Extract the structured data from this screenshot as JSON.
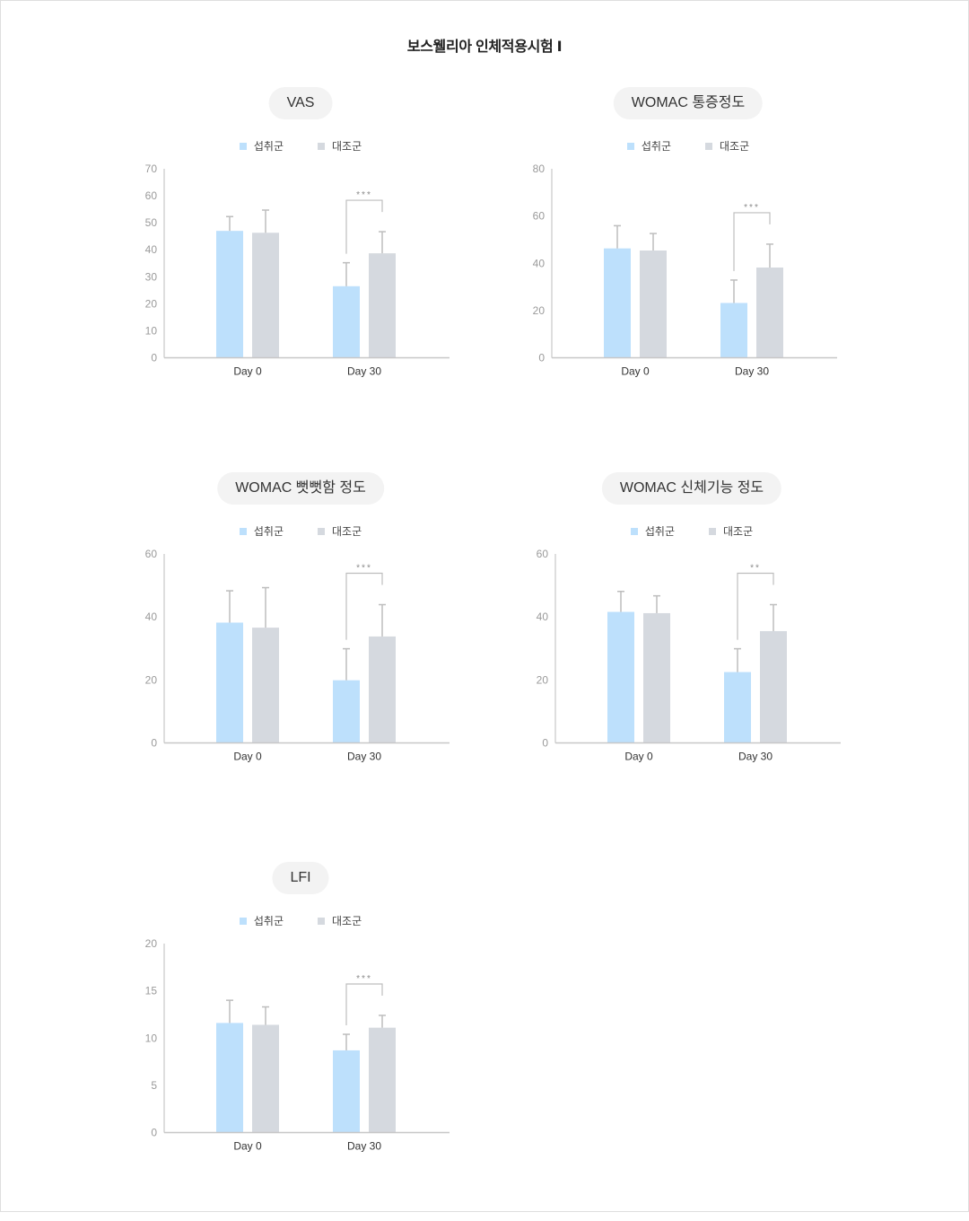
{
  "page": {
    "title": "보스웰리아 인체적용시험 Ⅰ"
  },
  "legend": {
    "series": [
      "섭취군",
      "대조군"
    ],
    "colors": [
      "#bde0fc",
      "#d5d9df"
    ]
  },
  "colors": {
    "intake": "#bde0fc",
    "control": "#d5d9df",
    "axis": "#c7c7c7",
    "error_bar": "#bdbdbd",
    "tick_label": "#9a9a9a",
    "category_label": "#333333",
    "pill_bg": "#f3f3f3"
  },
  "chart_data": [
    {
      "type": "bar",
      "title": "VAS",
      "categories": [
        "Day 0",
        "Day 30"
      ],
      "series": [
        {
          "name": "섭취군",
          "values": [
            47.0,
            26.5
          ],
          "error_upper": [
            52.3,
            35.2
          ]
        },
        {
          "name": "대조군",
          "values": [
            46.3,
            38.7
          ],
          "error_upper": [
            54.7,
            46.7
          ]
        }
      ],
      "ylim": [
        0,
        70
      ],
      "yticks": [
        0,
        10,
        20,
        30,
        40,
        50,
        60,
        70
      ],
      "annotations": [
        {
          "category": "Day 30",
          "text": "***"
        }
      ],
      "xlabel": "",
      "ylabel": "",
      "legend_position": "top",
      "grid": false
    },
    {
      "type": "bar",
      "title": "WOMAC 통증정도",
      "categories": [
        "Day 0",
        "Day 30"
      ],
      "series": [
        {
          "name": "섭취군",
          "values": [
            46.3,
            23.2
          ],
          "error_upper": [
            55.9,
            32.9
          ]
        },
        {
          "name": "대조군",
          "values": [
            45.4,
            38.2
          ],
          "error_upper": [
            52.6,
            48.1
          ]
        }
      ],
      "ylim": [
        0,
        80
      ],
      "yticks": [
        0,
        20,
        40,
        60,
        80
      ],
      "annotations": [
        {
          "category": "Day 30",
          "text": "***"
        }
      ],
      "xlabel": "",
      "ylabel": "",
      "legend_position": "top",
      "grid": false
    },
    {
      "type": "bar",
      "title": "WOMAC 뻣뻣함 정도",
      "categories": [
        "Day 0",
        "Day 30"
      ],
      "series": [
        {
          "name": "섭취군",
          "values": [
            38.2,
            19.9
          ],
          "error_upper": [
            48.3,
            29.9
          ]
        },
        {
          "name": "대조군",
          "values": [
            36.6,
            33.8
          ],
          "error_upper": [
            49.3,
            43.9
          ]
        }
      ],
      "ylim": [
        0,
        60
      ],
      "yticks": [
        0,
        20,
        40,
        60
      ],
      "annotations": [
        {
          "category": "Day 30",
          "text": "***"
        }
      ],
      "xlabel": "",
      "ylabel": "",
      "legend_position": "top",
      "grid": false
    },
    {
      "type": "bar",
      "title": "WOMAC 신체기능 정도",
      "categories": [
        "Day 0",
        "Day 30"
      ],
      "series": [
        {
          "name": "섭취군",
          "values": [
            41.6,
            22.5
          ],
          "error_upper": [
            48.1,
            29.9
          ]
        },
        {
          "name": "대조군",
          "values": [
            41.2,
            35.5
          ],
          "error_upper": [
            46.7,
            43.9
          ]
        }
      ],
      "ylim": [
        0,
        60
      ],
      "yticks": [
        0,
        20,
        40,
        60
      ],
      "annotations": [
        {
          "category": "Day 30",
          "text": "**"
        }
      ],
      "xlabel": "",
      "ylabel": "",
      "legend_position": "top",
      "grid": false
    },
    {
      "type": "bar",
      "title": "LFI",
      "categories": [
        "Day 0",
        "Day 30"
      ],
      "series": [
        {
          "name": "섭취군",
          "values": [
            11.6,
            8.7
          ],
          "error_upper": [
            14.0,
            10.4
          ]
        },
        {
          "name": "대조군",
          "values": [
            11.4,
            11.1
          ],
          "error_upper": [
            13.3,
            12.4
          ]
        }
      ],
      "ylim": [
        0,
        20
      ],
      "yticks": [
        0,
        5,
        10,
        15,
        20
      ],
      "annotations": [
        {
          "category": "Day 30",
          "text": "***"
        }
      ],
      "xlabel": "",
      "ylabel": "",
      "legend_position": "top",
      "grid": false
    }
  ]
}
